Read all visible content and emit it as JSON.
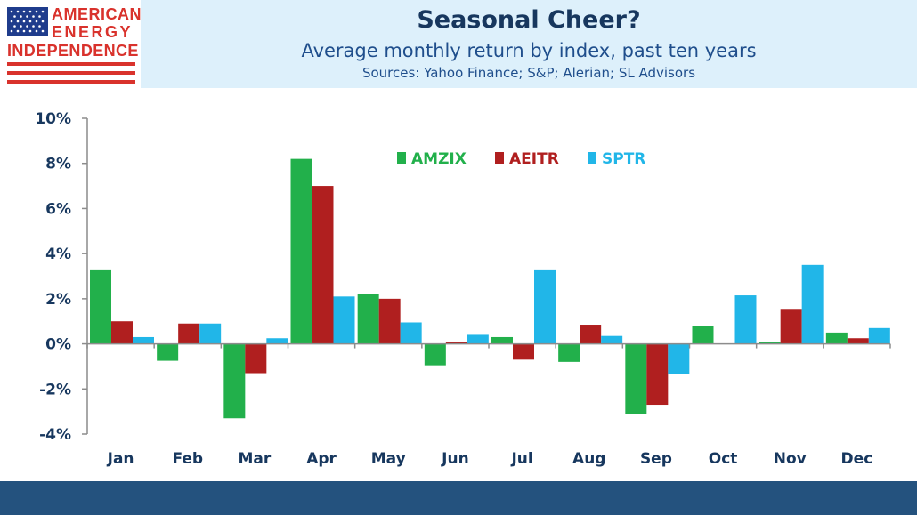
{
  "header": {
    "title": "Seasonal Cheer?",
    "subtitle": "Average monthly return by index, past ten years",
    "sources": "Sources: Yahoo Finance; S&P; Alerian; SL Advisors"
  },
  "logo": {
    "line1": "AMERICAN",
    "line2": "ENERGY",
    "line3": "INDEPENDENCE",
    "color": "#d9322c",
    "flag_blue": "#1f3c8c"
  },
  "colors": {
    "header_band": "#ddf0fb",
    "footer_band": "#24527e",
    "title_text": "#17375e",
    "axis_text": "#17375e"
  },
  "chart_data": {
    "type": "bar",
    "title": "",
    "xlabel": "",
    "ylabel": "",
    "ylim": [
      -4,
      10
    ],
    "yticks": [
      -4,
      -2,
      0,
      2,
      4,
      6,
      8,
      10
    ],
    "y_tick_labels": [
      "-4%",
      "-2%",
      "0%",
      "2%",
      "4%",
      "6%",
      "8%",
      "10%"
    ],
    "grid": false,
    "legend_position": "top-center",
    "categories": [
      "Jan",
      "Feb",
      "Mar",
      "Apr",
      "May",
      "Jun",
      "Jul",
      "Aug",
      "Sep",
      "Oct",
      "Nov",
      "Dec"
    ],
    "series": [
      {
        "name": "AMZIX",
        "color": "#22b04b",
        "values": [
          3.3,
          -0.75,
          -3.3,
          8.2,
          2.2,
          -0.95,
          0.3,
          -0.8,
          -3.1,
          0.8,
          0.1,
          0.5
        ]
      },
      {
        "name": "AEITR",
        "color": "#b01f1f",
        "values": [
          1.0,
          0.9,
          -1.3,
          7.0,
          2.0,
          0.1,
          -0.7,
          0.85,
          -2.7,
          0.0,
          1.55,
          0.25
        ]
      },
      {
        "name": "SPTR",
        "color": "#21b6e8",
        "values": [
          0.3,
          0.9,
          0.25,
          2.1,
          0.95,
          0.4,
          3.3,
          0.35,
          -1.35,
          2.15,
          3.5,
          0.7
        ]
      }
    ]
  }
}
